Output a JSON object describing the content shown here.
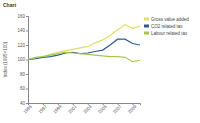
{
  "chart_data": {
    "type": "line",
    "title": "Chart",
    "y_label": "Index (1995=100)",
    "x": [
      1995,
      1996,
      1997,
      1998,
      1999,
      2000,
      2001,
      2002,
      2003,
      2004,
      2005,
      2006,
      2007,
      2008,
      2009,
      2010
    ],
    "series": [
      {
        "name": "Gross value added",
        "color": "#e3dc6a",
        "values": [
          100,
          102,
          104,
          107,
          110,
          112,
          114,
          116,
          118,
          123,
          127,
          133,
          141,
          148,
          143,
          146
        ]
      },
      {
        "name": "CO2 related tax",
        "color": "#2e5c8a",
        "values": [
          100,
          101,
          103,
          104,
          106,
          109,
          110,
          108,
          109,
          111,
          113,
          120,
          128,
          128,
          122,
          120
        ]
      },
      {
        "name": "Labour related tax",
        "color": "#a8c64e",
        "values": [
          100,
          103,
          104,
          106,
          108,
          110,
          109,
          108,
          107,
          106,
          105,
          104,
          104,
          103,
          97,
          99
        ]
      }
    ],
    "xlim": [
      1995,
      2010
    ],
    "xticks": [
      1995,
      1997,
      1999,
      2001,
      2003,
      2005,
      2007,
      2009
    ],
    "ylim": [
      40,
      160
    ],
    "yticks": [
      40,
      60,
      80,
      100,
      120,
      140,
      160
    ],
    "legend": "right"
  }
}
